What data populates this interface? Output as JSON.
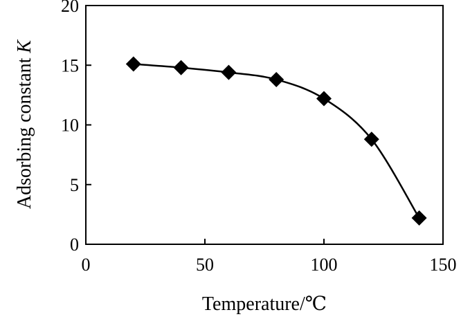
{
  "chart_data": {
    "type": "line",
    "title": "",
    "xlabel": "Temperature/℃",
    "ylabel": "Adsorbing constant ",
    "ylabel_italic": "K",
    "xlim": [
      0,
      150
    ],
    "ylim": [
      0,
      20
    ],
    "x_ticks": [
      0,
      50,
      100,
      150
    ],
    "y_ticks": [
      0,
      5,
      10,
      15,
      20
    ],
    "grid": false,
    "smooth": true,
    "marker": "diamond",
    "color": "#000000",
    "series": [
      {
        "x": [
          20,
          40,
          60,
          80,
          100,
          120,
          140
        ],
        "y": [
          15.1,
          14.8,
          14.4,
          13.8,
          12.2,
          8.8,
          2.2
        ]
      }
    ]
  }
}
